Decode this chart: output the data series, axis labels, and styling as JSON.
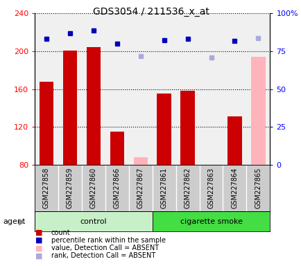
{
  "title": "GDS3054 / 211536_x_at",
  "samples": [
    "GSM227858",
    "GSM227859",
    "GSM227860",
    "GSM227866",
    "GSM227867",
    "GSM227861",
    "GSM227862",
    "GSM227863",
    "GSM227864",
    "GSM227865"
  ],
  "groups": [
    "control",
    "control",
    "control",
    "control",
    "control",
    "cigarette smoke",
    "cigarette smoke",
    "cigarette smoke",
    "cigarette smoke",
    "cigarette smoke"
  ],
  "count_values": [
    168,
    201,
    204,
    115,
    null,
    155,
    158,
    null,
    131,
    null
  ],
  "count_absent": [
    null,
    null,
    null,
    null,
    88,
    null,
    null,
    80,
    null,
    194
  ],
  "rank_values": [
    213,
    219,
    222,
    208,
    null,
    212,
    213,
    null,
    211,
    null
  ],
  "rank_absent": [
    null,
    null,
    null,
    null,
    195,
    null,
    null,
    193,
    null,
    214
  ],
  "ylim_left": [
    80,
    240
  ],
  "ylim_right": [
    0,
    100
  ],
  "yticks_left": [
    80,
    120,
    160,
    200,
    240
  ],
  "yticks_right": [
    0,
    25,
    50,
    75,
    100
  ],
  "ytick_labels_right": [
    "0",
    "25",
    "50",
    "75",
    "100%"
  ],
  "bar_color_present": "#cc0000",
  "bar_color_absent": "#ffb3ba",
  "dot_color_present": "#0000bb",
  "dot_color_absent": "#aaaadd",
  "plot_bg": "#f0f0f0",
  "label_bg": "#cccccc",
  "group_color_control": "#c8f0c8",
  "group_color_cigarette": "#44dd44",
  "legend_items": [
    {
      "color": "#cc0000",
      "label": "count"
    },
    {
      "color": "#0000bb",
      "label": "percentile rank within the sample"
    },
    {
      "color": "#ffb3ba",
      "label": "value, Detection Call = ABSENT"
    },
    {
      "color": "#aaaadd",
      "label": "rank, Detection Call = ABSENT"
    }
  ]
}
